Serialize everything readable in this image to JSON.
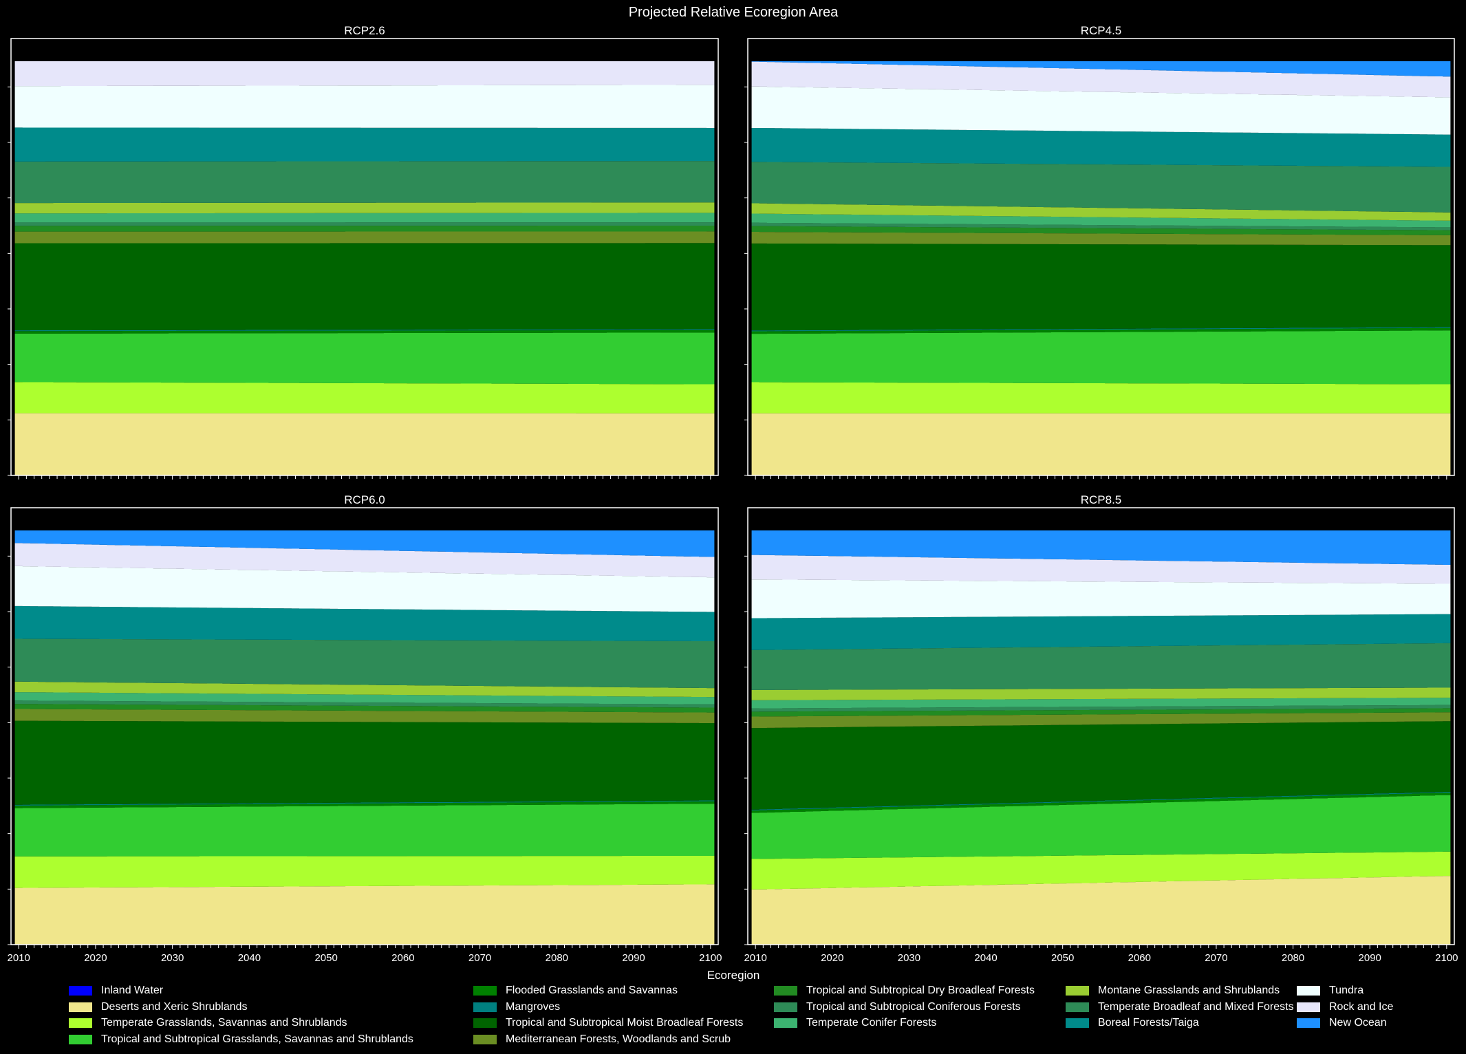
{
  "chart_data": {
    "suptitle": "Projected Relative Ecoregion Area",
    "type": "area",
    "stacked": true,
    "xlabel": "Ecoregion",
    "xlim": [
      2009,
      2101
    ],
    "ylim": [
      0,
      1
    ],
    "xticks": [
      2010,
      2020,
      2030,
      2040,
      2050,
      2060,
      2070,
      2080,
      2090,
      2100
    ],
    "x_step": 1,
    "yticks_labels_shown": false,
    "legend_position": "bottom-center",
    "categories": [
      {
        "name": "Inland Water",
        "color": "#0000ff"
      },
      {
        "name": "Deserts and Xeric Shrublands",
        "color": "#f0e68c"
      },
      {
        "name": "Temperate Grasslands, Savannas and Shrublands",
        "color": "#adff2f"
      },
      {
        "name": "Tropical and Subtropical Grasslands, Savannas and Shrublands",
        "color": "#32cd32"
      },
      {
        "name": "Flooded Grasslands and Savannas",
        "color": "#008000"
      },
      {
        "name": "Mangroves",
        "color": "#008080"
      },
      {
        "name": "Tropical and Subtropical Moist Broadleaf Forests",
        "color": "#006400"
      },
      {
        "name": "Mediterranean Forests, Woodlands and Scrub",
        "color": "#6b8e23"
      },
      {
        "name": "Tropical and Subtropical Dry Broadleaf Forests",
        "color": "#228b22"
      },
      {
        "name": "Tropical and Subtropical Coniferous Forests",
        "color": "#2e8b57"
      },
      {
        "name": "Temperate Conifer Forests",
        "color": "#3cb371"
      },
      {
        "name": "Montane Grasslands and Shrublands",
        "color": "#9acd32"
      },
      {
        "name": "Temperate Broadleaf and Mixed Forests",
        "color": "#2e8b57"
      },
      {
        "name": "Boreal Forests/Taiga",
        "color": "#008b8b"
      },
      {
        "name": "Tundra",
        "color": "#f0ffff"
      },
      {
        "name": "Rock and Ice",
        "color": "#e6e6fa"
      },
      {
        "name": "New Ocean",
        "color": "#1e90ff"
      }
    ],
    "panels": [
      {
        "title": "RCP2.6",
        "series": [
          {
            "name": "Inland Water",
            "values_2010_2100": [
              0.0,
              0.0
            ]
          },
          {
            "name": "Deserts and Xeric Shrublands",
            "values_2010_2100": [
              0.15,
              0.15
            ]
          },
          {
            "name": "Temperate Grasslands, Savannas and Shrublands",
            "values_2010_2100": [
              0.075,
              0.07
            ]
          },
          {
            "name": "Tropical and Subtropical Grasslands, Savannas and Shrublands",
            "values_2010_2100": [
              0.117,
              0.125
            ]
          },
          {
            "name": "Flooded Grasslands and Savannas",
            "values_2010_2100": [
              0.006,
              0.006
            ]
          },
          {
            "name": "Mangroves",
            "values_2010_2100": [
              0.002,
              0.002
            ]
          },
          {
            "name": "Tropical and Subtropical Moist Broadleaf Forests",
            "values_2010_2100": [
              0.21,
              0.208
            ]
          },
          {
            "name": "Mediterranean Forests, Woodlands and Scrub",
            "values_2010_2100": [
              0.028,
              0.028
            ]
          },
          {
            "name": "Tropical and Subtropical Dry Broadleaf Forests",
            "values_2010_2100": [
              0.014,
              0.014
            ]
          },
          {
            "name": "Tropical and Subtropical Coniferous Forests",
            "values_2010_2100": [
              0.008,
              0.008
            ]
          },
          {
            "name": "Temperate Conifer Forests",
            "values_2010_2100": [
              0.022,
              0.023
            ]
          },
          {
            "name": "Montane Grasslands and Shrublands",
            "values_2010_2100": [
              0.025,
              0.025
            ]
          },
          {
            "name": "Temperate Broadleaf and Mixed Forests",
            "values_2010_2100": [
              0.1,
              0.1
            ]
          },
          {
            "name": "Boreal Forests/Taiga",
            "values_2010_2100": [
              0.082,
              0.08
            ]
          },
          {
            "name": "Tundra",
            "values_2010_2100": [
              0.1,
              0.104
            ]
          },
          {
            "name": "Rock and Ice",
            "values_2010_2100": [
              0.06,
              0.057
            ]
          },
          {
            "name": "New Ocean",
            "values_2010_2100": [
              0.0,
              0.0
            ]
          }
        ]
      },
      {
        "title": "RCP4.5",
        "series": [
          {
            "name": "Inland Water",
            "values_2010_2100": [
              0.0,
              0.0
            ]
          },
          {
            "name": "Deserts and Xeric Shrublands",
            "values_2010_2100": [
              0.15,
              0.15
            ]
          },
          {
            "name": "Temperate Grasslands, Savannas and Shrublands",
            "values_2010_2100": [
              0.075,
              0.07
            ]
          },
          {
            "name": "Tropical and Subtropical Grasslands, Savannas and Shrublands",
            "values_2010_2100": [
              0.117,
              0.13
            ]
          },
          {
            "name": "Flooded Grasslands and Savannas",
            "values_2010_2100": [
              0.006,
              0.006
            ]
          },
          {
            "name": "Mangroves",
            "values_2010_2100": [
              0.002,
              0.002
            ]
          },
          {
            "name": "Tropical and Subtropical Moist Broadleaf Forests",
            "values_2010_2100": [
              0.21,
              0.198
            ]
          },
          {
            "name": "Mediterranean Forests, Woodlands and Scrub",
            "values_2010_2100": [
              0.028,
              0.024
            ]
          },
          {
            "name": "Tropical and Subtropical Dry Broadleaf Forests",
            "values_2010_2100": [
              0.014,
              0.012
            ]
          },
          {
            "name": "Tropical and Subtropical Coniferous Forests",
            "values_2010_2100": [
              0.008,
              0.007
            ]
          },
          {
            "name": "Temperate Conifer Forests",
            "values_2010_2100": [
              0.022,
              0.016
            ]
          },
          {
            "name": "Montane Grasslands and Shrublands",
            "values_2010_2100": [
              0.025,
              0.02
            ]
          },
          {
            "name": "Temperate Broadleaf and Mixed Forests",
            "values_2010_2100": [
              0.1,
              0.11
            ]
          },
          {
            "name": "Boreal Forests/Taiga",
            "values_2010_2100": [
              0.082,
              0.078
            ]
          },
          {
            "name": "Tundra",
            "values_2010_2100": [
              0.1,
              0.09
            ]
          },
          {
            "name": "Rock and Ice",
            "values_2010_2100": [
              0.06,
              0.05
            ]
          },
          {
            "name": "New Ocean",
            "values_2010_2100": [
              0.001,
              0.037
            ]
          }
        ]
      },
      {
        "title": "RCP6.0",
        "series": [
          {
            "name": "Inland Water",
            "values_2010_2100": [
              0.0,
              0.0
            ]
          },
          {
            "name": "Deserts and Xeric Shrublands",
            "values_2010_2100": [
              0.135,
              0.148
            ]
          },
          {
            "name": "Temperate Grasslands, Savannas and Shrublands",
            "values_2010_2100": [
              0.075,
              0.07
            ]
          },
          {
            "name": "Tropical and Subtropical Grasslands, Savannas and Shrublands",
            "values_2010_2100": [
              0.115,
              0.128
            ]
          },
          {
            "name": "Flooded Grasslands and Savannas",
            "values_2010_2100": [
              0.006,
              0.006
            ]
          },
          {
            "name": "Mangroves",
            "values_2010_2100": [
              0.002,
              0.002
            ]
          },
          {
            "name": "Tropical and Subtropical Moist Broadleaf Forests",
            "values_2010_2100": [
              0.2,
              0.19
            ]
          },
          {
            "name": "Mediterranean Forests, Woodlands and Scrub",
            "values_2010_2100": [
              0.028,
              0.026
            ]
          },
          {
            "name": "Tropical and Subtropical Dry Broadleaf Forests",
            "values_2010_2100": [
              0.012,
              0.012
            ]
          },
          {
            "name": "Tropical and Subtropical Coniferous Forests",
            "values_2010_2100": [
              0.008,
              0.008
            ]
          },
          {
            "name": "Temperate Conifer Forests",
            "values_2010_2100": [
              0.02,
              0.018
            ]
          },
          {
            "name": "Montane Grasslands and Shrublands",
            "values_2010_2100": [
              0.025,
              0.022
            ]
          },
          {
            "name": "Temperate Broadleaf and Mixed Forests",
            "values_2010_2100": [
              0.102,
              0.115
            ]
          },
          {
            "name": "Boreal Forests/Taiga",
            "values_2010_2100": [
              0.078,
              0.072
            ]
          },
          {
            "name": "Tundra",
            "values_2010_2100": [
              0.095,
              0.085
            ]
          },
          {
            "name": "Rock and Ice",
            "values_2010_2100": [
              0.055,
              0.05
            ]
          },
          {
            "name": "New Ocean",
            "values_2010_2100": [
              0.03,
              0.065
            ]
          }
        ]
      },
      {
        "title": "RCP8.5",
        "series": [
          {
            "name": "Inland Water",
            "values_2010_2100": [
              0.0,
              0.0
            ]
          },
          {
            "name": "Deserts and Xeric Shrublands",
            "values_2010_2100": [
              0.135,
              0.17
            ]
          },
          {
            "name": "Temperate Grasslands, Savannas and Shrublands",
            "values_2010_2100": [
              0.075,
              0.06
            ]
          },
          {
            "name": "Tropical and Subtropical Grasslands, Savannas and Shrublands",
            "values_2010_2100": [
              0.113,
              0.14
            ]
          },
          {
            "name": "Flooded Grasslands and Savannas",
            "values_2010_2100": [
              0.006,
              0.006
            ]
          },
          {
            "name": "Mangroves",
            "values_2010_2100": [
              0.002,
              0.002
            ]
          },
          {
            "name": "Tropical and Subtropical Moist Broadleaf Forests",
            "values_2010_2100": [
              0.2,
              0.175
            ]
          },
          {
            "name": "Mediterranean Forests, Woodlands and Scrub",
            "values_2010_2100": [
              0.028,
              0.022
            ]
          },
          {
            "name": "Tropical and Subtropical Dry Broadleaf Forests",
            "values_2010_2100": [
              0.012,
              0.01
            ]
          },
          {
            "name": "Tropical and Subtropical Coniferous Forests",
            "values_2010_2100": [
              0.008,
              0.008
            ]
          },
          {
            "name": "Temperate Conifer Forests",
            "values_2010_2100": [
              0.02,
              0.018
            ]
          },
          {
            "name": "Montane Grasslands and Shrublands",
            "values_2010_2100": [
              0.025,
              0.025
            ]
          },
          {
            "name": "Temperate Broadleaf and Mixed Forests",
            "values_2010_2100": [
              0.098,
              0.11
            ]
          },
          {
            "name": "Boreal Forests/Taiga",
            "values_2010_2100": [
              0.078,
              0.072
            ]
          },
          {
            "name": "Tundra",
            "values_2010_2100": [
              0.095,
              0.075
            ]
          },
          {
            "name": "Rock and Ice",
            "values_2010_2100": [
              0.06,
              0.047
            ]
          },
          {
            "name": "New Ocean",
            "values_2010_2100": [
              0.06,
              0.085
            ]
          }
        ]
      }
    ]
  }
}
